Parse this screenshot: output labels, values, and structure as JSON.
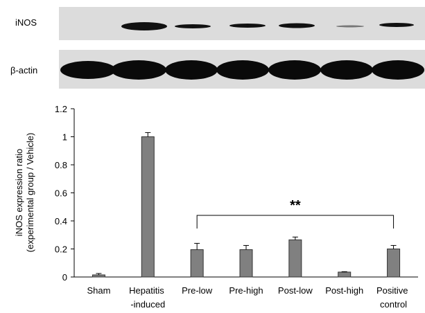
{
  "chart_data": {
    "type": "bar",
    "blot_labels": [
      "iNOS",
      "β-actin"
    ],
    "ylabel": [
      "iNOS expression ratio",
      "(experimental group / Vehicle)"
    ],
    "categories": [
      "Sham",
      "Hepatitis -induced",
      "Pre-low",
      "Pre-high",
      "Post-low",
      "Post-high",
      "Positive control"
    ],
    "values": [
      0.015,
      1.0,
      0.195,
      0.195,
      0.265,
      0.035,
      0.2
    ],
    "errors": [
      0.01,
      0.03,
      0.045,
      0.03,
      0.02,
      0.003,
      0.025
    ],
    "color": "#808080",
    "ylim": [
      0,
      1.2
    ],
    "yticks": [
      0,
      0.2,
      0.4,
      0.6,
      0.8,
      1,
      1.2
    ],
    "annotation": "**"
  }
}
